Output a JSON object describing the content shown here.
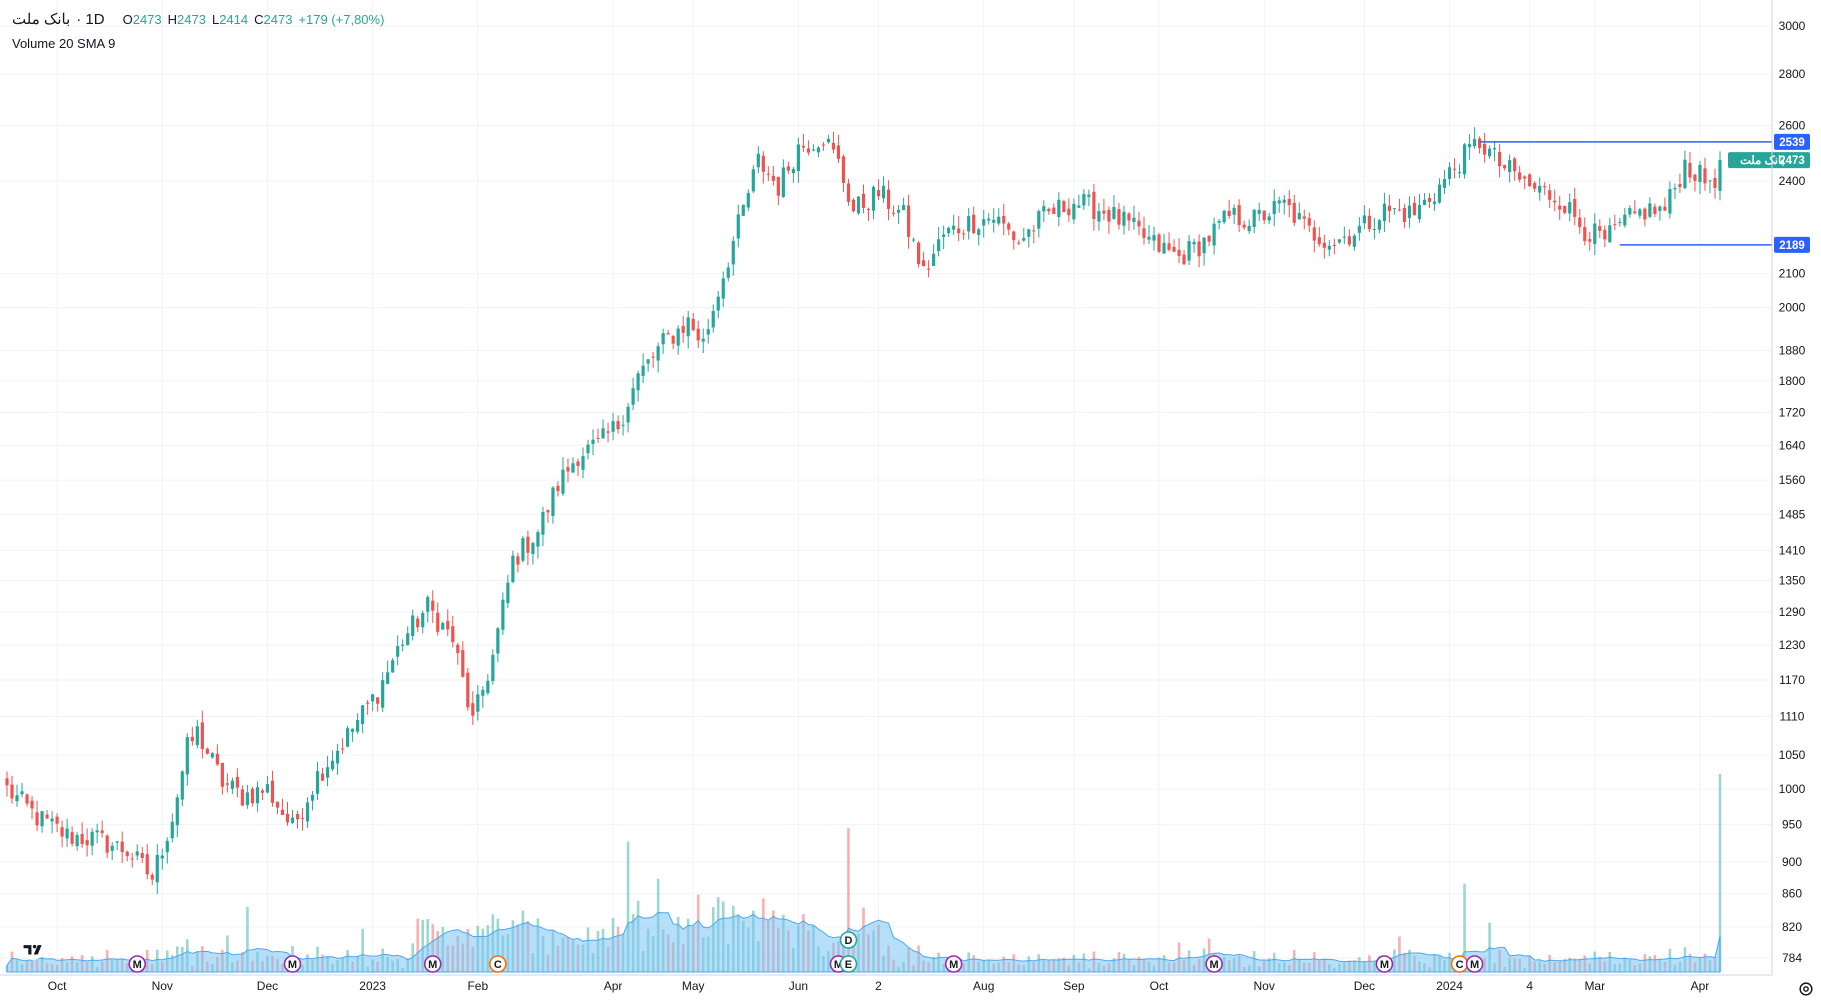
{
  "header": {
    "symbol": "بانک ملت",
    "interval": "· 1D",
    "open_label": "O",
    "open": "2473",
    "high_label": "H",
    "high": "2473",
    "low_label": "L",
    "low": "2414",
    "close_label": "C",
    "close": "2473",
    "change": "+179 (+7,80%)"
  },
  "volume_legend": "Volume 20 SMA 9",
  "colors": {
    "up": "#26a69a",
    "down": "#ef5350",
    "line": "#2962ff",
    "volume_area": "#7ac4f6",
    "grid": "#f0f3fa",
    "last_tag": "#26a69a"
  },
  "chart_data": {
    "type": "candlestick",
    "scale": "log",
    "y_ticks": [
      784,
      820,
      860,
      900,
      950,
      1000,
      1050,
      1110,
      1170,
      1230,
      1290,
      1350,
      1410,
      1485,
      1560,
      1640,
      1720,
      1800,
      1880,
      2000,
      2100,
      2400,
      2600,
      2800,
      3000
    ],
    "x_ticks": [
      {
        "label": "Oct",
        "index": 10
      },
      {
        "label": "Nov",
        "index": 31
      },
      {
        "label": "Dec",
        "index": 52
      },
      {
        "label": "2023",
        "index": 73
      },
      {
        "label": "Feb",
        "index": 94
      },
      {
        "label": "Apr",
        "index": 121
      },
      {
        "label": "May",
        "index": 137
      },
      {
        "label": "Jun",
        "index": 158
      },
      {
        "label": "2",
        "index": 174
      },
      {
        "label": "Aug",
        "index": 195
      },
      {
        "label": "Sep",
        "index": 213
      },
      {
        "label": "Oct",
        "index": 230
      },
      {
        "label": "Nov",
        "index": 251
      },
      {
        "label": "Dec",
        "index": 271
      },
      {
        "label": "2024",
        "index": 288
      },
      {
        "label": "4",
        "index": 304
      },
      {
        "label": "Mar",
        "index": 317
      },
      {
        "label": "Apr",
        "index": 338
      }
    ],
    "key_points": [
      [
        0,
        1000
      ],
      [
        6,
        960
      ],
      [
        12,
        935
      ],
      [
        18,
        930
      ],
      [
        24,
        915
      ],
      [
        29,
        880
      ],
      [
        33,
        960
      ],
      [
        36,
        1060
      ],
      [
        38,
        1085
      ],
      [
        43,
        1010
      ],
      [
        47,
        990
      ],
      [
        52,
        1000
      ],
      [
        57,
        945
      ],
      [
        62,
        1020
      ],
      [
        68,
        1080
      ],
      [
        74,
        1150
      ],
      [
        79,
        1240
      ],
      [
        84,
        1300
      ],
      [
        89,
        1240
      ],
      [
        93,
        1100
      ],
      [
        97,
        1210
      ],
      [
        101,
        1390
      ],
      [
        106,
        1450
      ],
      [
        110,
        1550
      ],
      [
        114,
        1620
      ],
      [
        118,
        1640
      ],
      [
        122,
        1690
      ],
      [
        126,
        1810
      ],
      [
        131,
        1900
      ],
      [
        136,
        1960
      ],
      [
        139,
        1900
      ],
      [
        142,
        2050
      ],
      [
        146,
        2250
      ],
      [
        150,
        2470
      ],
      [
        154,
        2380
      ],
      [
        158,
        2520
      ],
      [
        163,
        2560
      ],
      [
        166,
        2460
      ],
      [
        169,
        2300
      ],
      [
        174,
        2360
      ],
      [
        179,
        2280
      ],
      [
        183,
        2100
      ],
      [
        187,
        2220
      ],
      [
        192,
        2260
      ],
      [
        197,
        2280
      ],
      [
        202,
        2200
      ],
      [
        207,
        2280
      ],
      [
        213,
        2330
      ],
      [
        219,
        2300
      ],
      [
        224,
        2250
      ],
      [
        229,
        2190
      ],
      [
        234,
        2150
      ],
      [
        239,
        2200
      ],
      [
        244,
        2280
      ],
      [
        249,
        2270
      ],
      [
        255,
        2320
      ],
      [
        260,
        2230
      ],
      [
        265,
        2200
      ],
      [
        270,
        2240
      ],
      [
        275,
        2300
      ],
      [
        281,
        2290
      ],
      [
        286,
        2380
      ],
      [
        290,
        2470
      ],
      [
        294,
        2540
      ],
      [
        298,
        2460
      ],
      [
        304,
        2380
      ],
      [
        310,
        2340
      ],
      [
        315,
        2240
      ],
      [
        319,
        2200
      ],
      [
        323,
        2260
      ],
      [
        327,
        2300
      ],
      [
        331,
        2300
      ],
      [
        335,
        2460
      ],
      [
        339,
        2400
      ],
      [
        342,
        2420
      ]
    ],
    "last_index": 342,
    "last_close": 2473,
    "lines": [
      {
        "name": "resistance",
        "value": 2539,
        "from_index": 294,
        "label": "2539"
      },
      {
        "name": "support",
        "value": 2189,
        "from_index": 322,
        "label": "2189"
      }
    ],
    "last_price_tag": "2473",
    "last_price_tag_prefix": "بانک ملت",
    "events": [
      {
        "type": "M",
        "index": 26
      },
      {
        "type": "M",
        "index": 57
      },
      {
        "type": "M",
        "index": 85
      },
      {
        "type": "C",
        "index": 98
      },
      {
        "type": "M",
        "index": 166
      },
      {
        "type": "E",
        "index": 168
      },
      {
        "type": "D",
        "index": 168
      },
      {
        "type": "M",
        "index": 189
      },
      {
        "type": "M",
        "index": 241
      },
      {
        "type": "M",
        "index": 275
      },
      {
        "type": "C",
        "index": 290
      },
      {
        "type": "M",
        "index": 293
      }
    ]
  }
}
